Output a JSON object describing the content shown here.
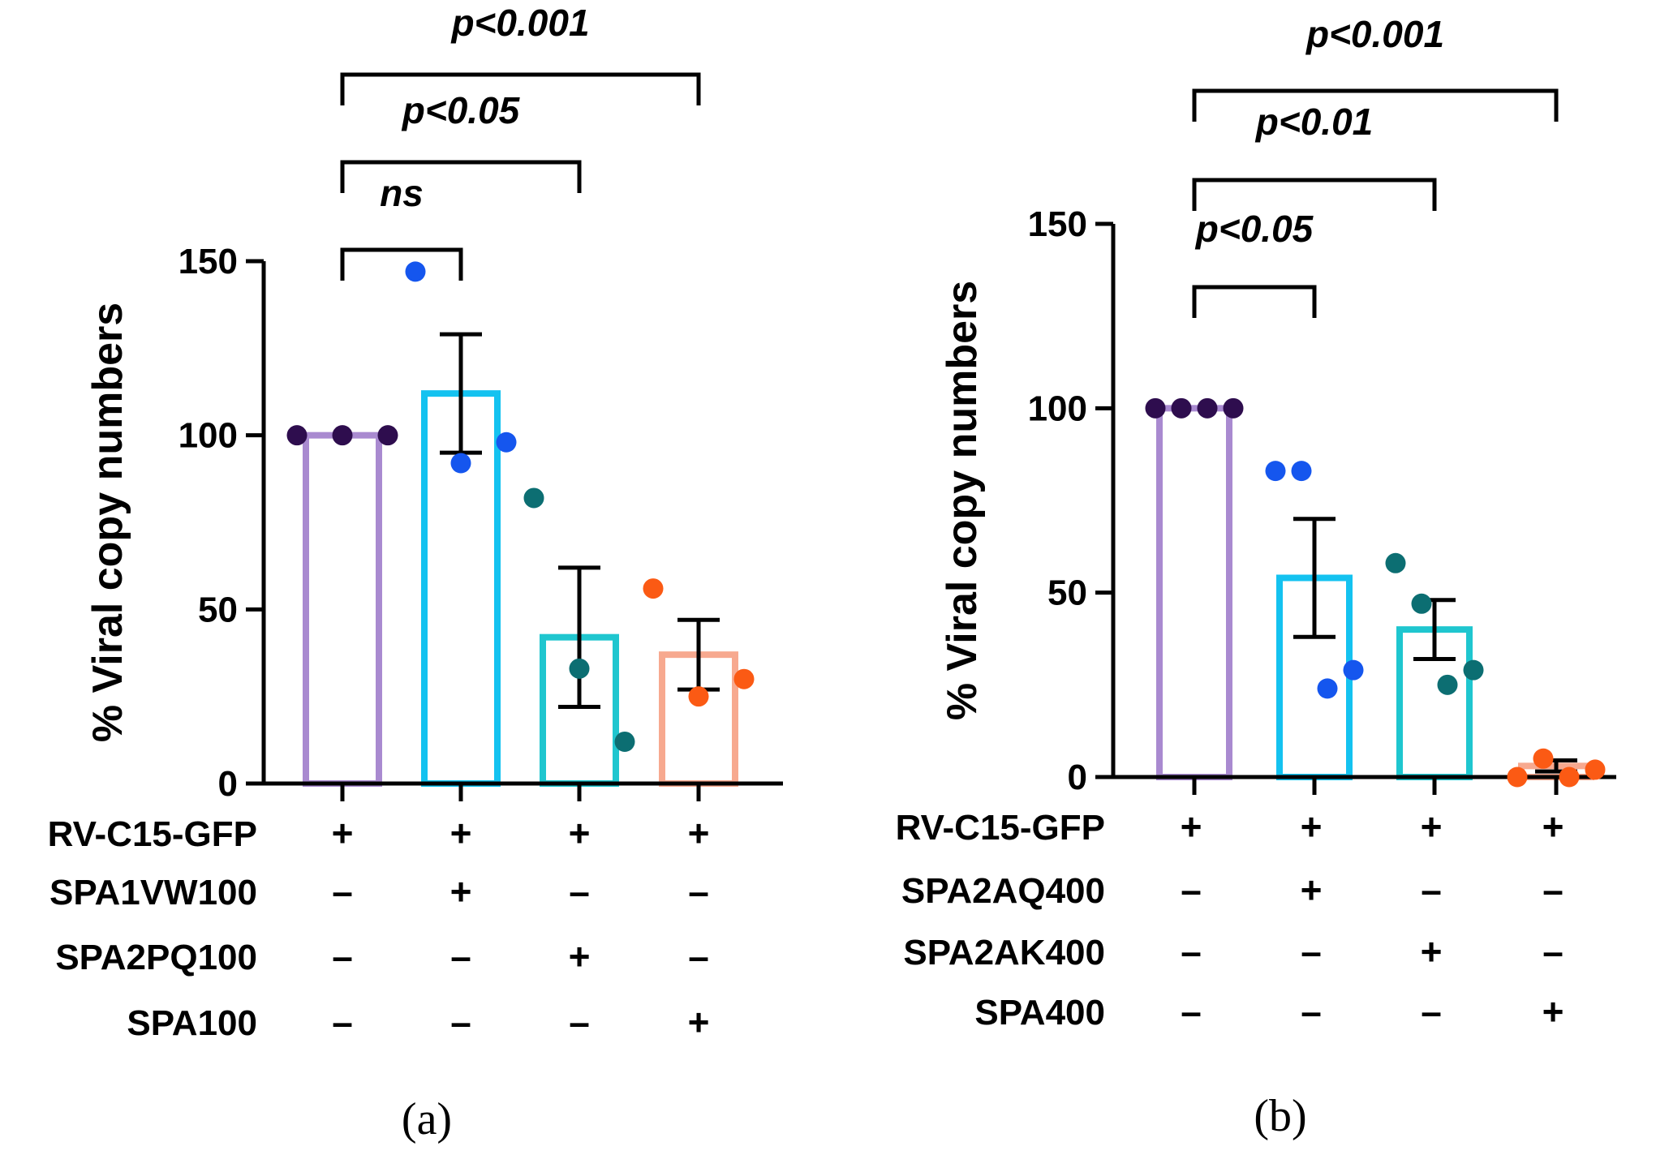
{
  "chart_data": [
    {
      "type": "bar",
      "caption": "(a)",
      "ylabel": "% Viral copy numbers",
      "ylim": [
        0,
        150
      ],
      "yticks": [
        0,
        50,
        100,
        150
      ],
      "bars": [
        {
          "value": 100,
          "error": 0,
          "color": "#a98ad0",
          "dot_color": "#2e0d4e",
          "points": [
            100,
            100,
            100
          ]
        },
        {
          "value": 112,
          "error": 17,
          "color": "#14c2f0",
          "dot_color": "#1556ee",
          "points": [
            147,
            92,
            98
          ]
        },
        {
          "value": 42,
          "error": 20,
          "color": "#1fc6cf",
          "dot_color": "#0c6e72",
          "points": [
            82,
            33,
            12
          ]
        },
        {
          "value": 37,
          "error": 10,
          "color": "#f7a98f",
          "dot_color": "#fb5a14",
          "points": [
            56,
            25,
            30
          ]
        }
      ],
      "brackets": [
        {
          "from": 0,
          "to": 1,
          "label": "ns"
        },
        {
          "from": 0,
          "to": 2,
          "label": "p<0.05"
        },
        {
          "from": 0,
          "to": 3,
          "label": "p<0.001"
        }
      ],
      "rows": [
        {
          "label": "RV-C15-GFP",
          "signs": [
            "+",
            "+",
            "+",
            "+"
          ]
        },
        {
          "label": "SPA1VW100",
          "signs": [
            "–",
            "+",
            "–",
            "–"
          ]
        },
        {
          "label": "SPA2PQ100",
          "signs": [
            "–",
            "–",
            "+",
            "–"
          ]
        },
        {
          "label": "SPA100",
          "signs": [
            "–",
            "–",
            "–",
            "+"
          ]
        }
      ]
    },
    {
      "type": "bar",
      "caption": "(b)",
      "ylabel": "% Viral copy numbers",
      "ylim": [
        0,
        150
      ],
      "yticks": [
        0,
        50,
        100,
        150
      ],
      "bars": [
        {
          "value": 100,
          "error": 0,
          "color": "#a98ad0",
          "dot_color": "#2e0d4e",
          "points": [
            100,
            100,
            100,
            100
          ]
        },
        {
          "value": 54,
          "error": 16,
          "color": "#14c2f0",
          "dot_color": "#1556ee",
          "points": [
            83,
            83,
            24,
            29
          ]
        },
        {
          "value": 40,
          "error": 8,
          "color": "#1fc6cf",
          "dot_color": "#0c6e72",
          "points": [
            58,
            47,
            25,
            29
          ]
        },
        {
          "value": 3,
          "error": 1.5,
          "color": "#f7a98f",
          "dot_color": "#fb5a14",
          "points": [
            0,
            5,
            0,
            2
          ]
        }
      ],
      "brackets": [
        {
          "from": 0,
          "to": 1,
          "label": "p<0.05"
        },
        {
          "from": 0,
          "to": 2,
          "label": "p<0.01"
        },
        {
          "from": 0,
          "to": 3,
          "label": "p<0.001"
        }
      ],
      "rows": [
        {
          "label": "RV-C15-GFP",
          "signs": [
            "+",
            "+",
            "+",
            "+"
          ]
        },
        {
          "label": "SPA2AQ400",
          "signs": [
            "–",
            "+",
            "–",
            "–"
          ]
        },
        {
          "label": "SPA2AK400",
          "signs": [
            "–",
            "–",
            "+",
            "–"
          ]
        },
        {
          "label": "SPA400",
          "signs": [
            "–",
            "–",
            "–",
            "+"
          ]
        }
      ]
    }
  ]
}
